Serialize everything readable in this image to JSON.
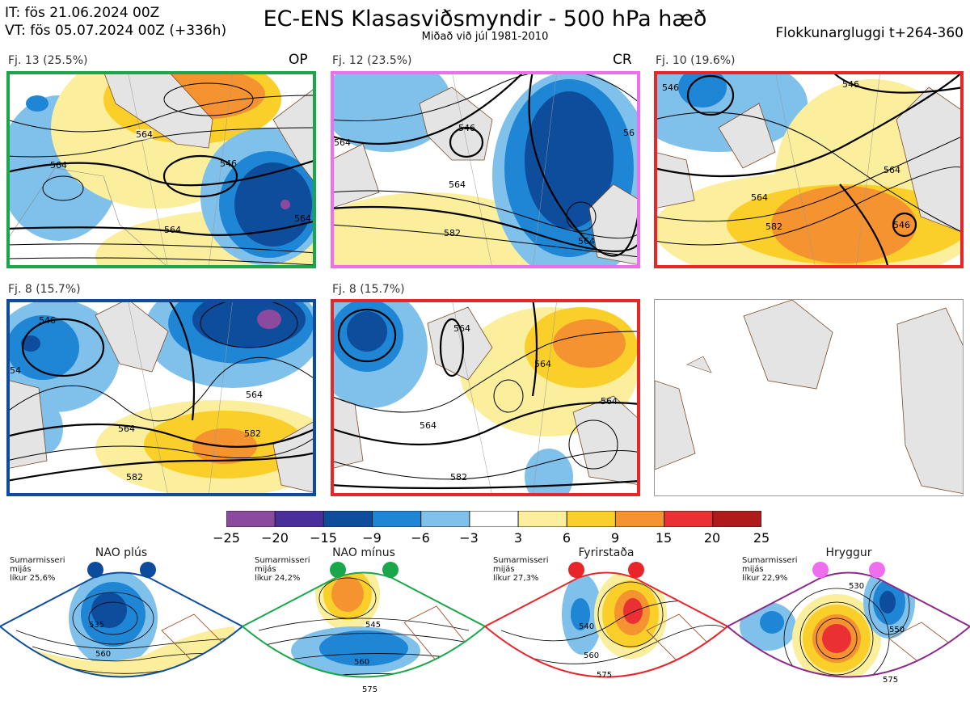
{
  "header": {
    "it": "IT: fös 21.06.2024 00Z",
    "vt": "VT: fös 05.07.2024 00Z  (+336h)",
    "title": "EC-ENS Klasasviðsmyndir - 500 hPa hæð",
    "subtitle": "Miðað við júl 1981-2010",
    "window": "Flokkunargluggi t+264-360"
  },
  "clusters": [
    {
      "label": "Fj. 13 (25.5%)",
      "tag": "OP",
      "frame": "#1aa64a",
      "contours": [
        "564",
        "546",
        "564",
        "564",
        "564"
      ]
    },
    {
      "label": "Fj. 12 (23.5%)",
      "tag": "CR",
      "frame": "#ee6eee",
      "contours": [
        "546",
        "564",
        "564",
        "582",
        "564",
        "56"
      ]
    },
    {
      "label": "Fj. 10 (19.6%)",
      "tag": "",
      "frame": "#e8262a",
      "contours": [
        "546",
        "546",
        "564",
        "564",
        "582",
        "546"
      ]
    },
    {
      "label": "Fj. 8 (15.7%)",
      "tag": "",
      "frame": "#0d4c9c",
      "contours": [
        "546",
        "564",
        "564",
        "582",
        "582",
        "54"
      ]
    },
    {
      "label": "Fj. 8 (15.7%)",
      "tag": "",
      "frame": "#e8262a",
      "contours": [
        "564",
        "564",
        "564",
        "564",
        "582"
      ]
    }
  ],
  "colorbar": {
    "colors": [
      "#8c4a9e",
      "#4a2f9a",
      "#0e4c9c",
      "#1f86d6",
      "#7fc1ea",
      "#ffffff",
      "#fbee9c",
      "#fbcf2a",
      "#f59331",
      "#ea3032",
      "#b01a1a"
    ],
    "ticks": [
      "−25",
      "−20",
      "−15",
      "−9",
      "−6",
      "−3",
      "3",
      "6",
      "9",
      "15",
      "20",
      "25"
    ]
  },
  "regimes": [
    {
      "name": "NAO plús",
      "info": [
        "Sumarmisseri",
        "mijás",
        "líkur 25,6%"
      ],
      "color": "#0d4c9c",
      "contours": [
        "535",
        "560"
      ]
    },
    {
      "name": "NAO mínus",
      "info": [
        "Sumarmisseri",
        "mijás",
        "líkur 24,2%"
      ],
      "color": "#1aa64a",
      "contours": [
        "545",
        "560",
        "575"
      ]
    },
    {
      "name": "Fyrirstaða",
      "info": [
        "Sumarmisseri",
        "mijás",
        "líkur 27,3%"
      ],
      "color": "#e8262a",
      "contours": [
        "540",
        "560",
        "575"
      ]
    },
    {
      "name": "Hryggur",
      "info": [
        "Sumarmisseri",
        "mijás",
        "líkur 22,9%"
      ],
      "color": "#8a2a8a",
      "contours": [
        "530",
        "550",
        "575"
      ]
    }
  ]
}
